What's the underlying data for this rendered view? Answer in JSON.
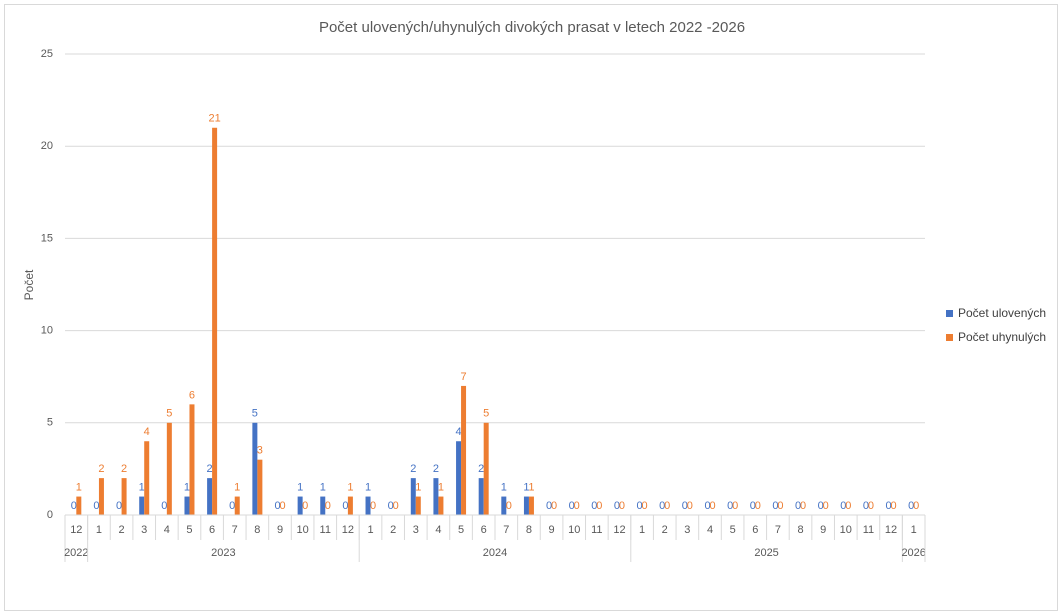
{
  "chart_data": {
    "type": "bar",
    "title": "Počet ulovených/uhynulých  divokých prasat v letech 2022 -2026",
    "y_label": "Počet",
    "groups": [
      {
        "name": "2022",
        "categories": [
          "12"
        ]
      },
      {
        "name": "2023",
        "categories": [
          "1",
          "2",
          "3",
          "4",
          "5",
          "6",
          "7",
          "8",
          "9",
          "10",
          "11",
          "12"
        ]
      },
      {
        "name": "2024",
        "categories": [
          "1",
          "2",
          "3",
          "4",
          "5",
          "6",
          "7",
          "8",
          "9",
          "10",
          "11",
          "12"
        ]
      },
      {
        "name": "2025",
        "categories": [
          "1",
          "2",
          "3",
          "4",
          "5",
          "6",
          "7",
          "8",
          "9",
          "10",
          "11",
          "12"
        ]
      },
      {
        "name": "2026",
        "categories": [
          "1"
        ]
      }
    ],
    "series": [
      {
        "name": "Počet ulovených",
        "color": "#4472c4",
        "values": [
          0,
          0,
          0,
          1,
          0,
          1,
          2,
          0,
          5,
          0,
          1,
          1,
          0,
          1,
          0,
          2,
          2,
          4,
          2,
          1,
          1,
          0,
          0,
          0,
          0,
          0,
          0,
          0,
          0,
          0,
          0,
          0,
          0,
          0,
          0,
          0,
          0,
          0
        ]
      },
      {
        "name": "Počet uhynulých",
        "color": "#ed7d31",
        "values": [
          1,
          2,
          2,
          4,
          5,
          6,
          21,
          1,
          3,
          0,
          0,
          0,
          1,
          0,
          0,
          1,
          1,
          7,
          5,
          0,
          1,
          0,
          0,
          0,
          0,
          0,
          0,
          0,
          0,
          0,
          0,
          0,
          0,
          0,
          0,
          0,
          0,
          0
        ]
      }
    ],
    "ylim": [
      0,
      25
    ],
    "yticks": [
      0,
      5,
      10,
      15,
      20,
      25
    ],
    "grid": true,
    "legend": "right"
  }
}
